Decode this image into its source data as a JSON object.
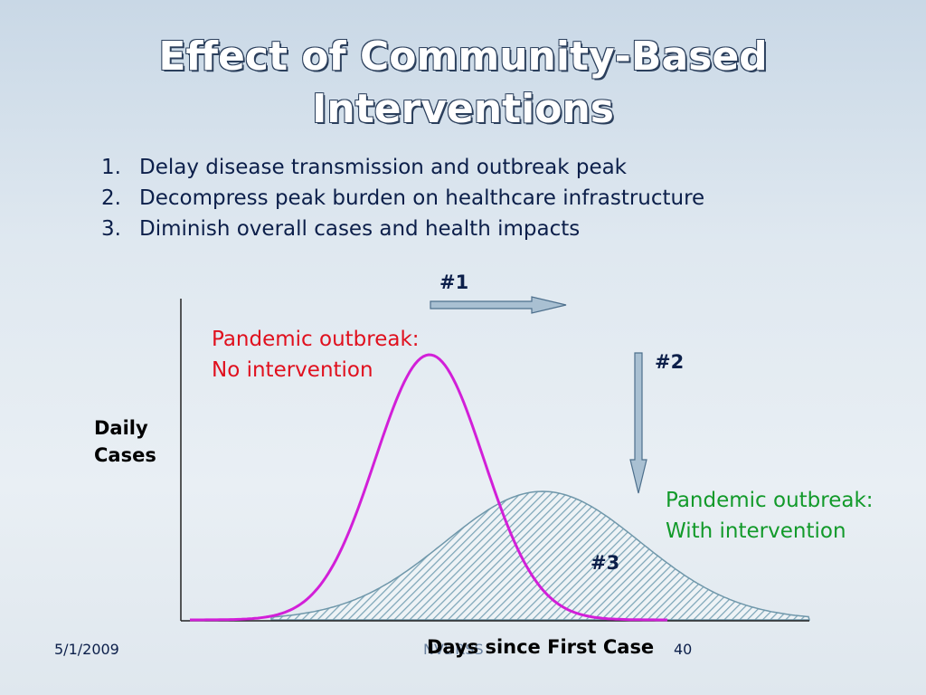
{
  "title": [
    "Effect of Community-Based",
    "Interventions"
  ],
  "items": [
    {
      "number": "1.",
      "text": "Delay disease transmission and outbreak peak"
    },
    {
      "number": "2.",
      "text": "Decompress peak burden on healthcare infrastructure"
    },
    {
      "number": "3.",
      "text": "Diminish overall cases and health impacts"
    }
  ],
  "markers": [
    "#1",
    "#2",
    "#3"
  ],
  "curves": [
    {
      "label": [
        "Pandemic outbreak:",
        "No intervention"
      ]
    },
    {
      "label": [
        "Pandemic outbreak:",
        "With intervention"
      ]
    }
  ],
  "y_axis_label": [
    "Daily",
    "Cases"
  ],
  "x_axis_label": "Days since First Case",
  "footer": {
    "date": "5/1/2009",
    "source": "NVDRSS",
    "page": "40"
  }
}
